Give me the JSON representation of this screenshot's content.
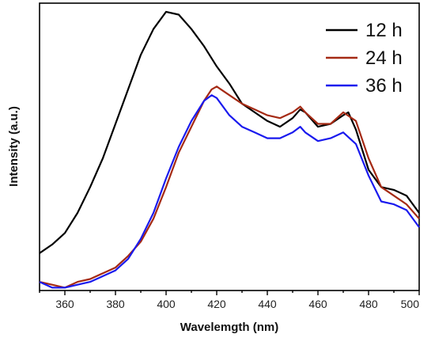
{
  "chart_data": {
    "type": "line",
    "xlabel": "Wavelemgth (nm)",
    "ylabel": "Intensity (a.u.)",
    "xlim": [
      350,
      500
    ],
    "ylim": [
      0,
      100
    ],
    "x_ticks": [
      360,
      380,
      400,
      420,
      440,
      460,
      480,
      500
    ],
    "y_ticks_shown": false,
    "grid": false,
    "legend_position": "top-right",
    "series": [
      {
        "name": "12 h",
        "color": "#000000",
        "x": [
          350,
          355,
          360,
          365,
          370,
          375,
          380,
          385,
          390,
          395,
          400,
          405,
          410,
          415,
          420,
          425,
          430,
          435,
          440,
          445,
          450,
          453,
          455,
          460,
          465,
          470,
          472,
          475,
          480,
          485,
          490,
          495,
          500
        ],
        "y": [
          13,
          16,
          20,
          27,
          36,
          46,
          58,
          70,
          82,
          91,
          97,
          96,
          91,
          85,
          78,
          72,
          65,
          62,
          59,
          57,
          60,
          63,
          62,
          57,
          58,
          61,
          62,
          56,
          42,
          36,
          35,
          33,
          27
        ]
      },
      {
        "name": "24 h",
        "color": "#a52a14",
        "x": [
          350,
          355,
          360,
          365,
          370,
          375,
          380,
          385,
          390,
          395,
          400,
          405,
          410,
          415,
          418,
          420,
          425,
          430,
          435,
          440,
          445,
          450,
          453,
          455,
          460,
          465,
          470,
          475,
          480,
          485,
          490,
          495,
          500
        ],
        "y": [
          3,
          2,
          1,
          3,
          4,
          6,
          8,
          12,
          17,
          25,
          36,
          48,
          57,
          66,
          70,
          71,
          68,
          65,
          63,
          61,
          60,
          62,
          64,
          62,
          58,
          58,
          62,
          59,
          46,
          36,
          33,
          30,
          25
        ]
      },
      {
        "name": "36 h",
        "color": "#1a1aee",
        "x": [
          350,
          355,
          360,
          365,
          370,
          375,
          380,
          385,
          390,
          395,
          400,
          405,
          410,
          415,
          418,
          420,
          425,
          430,
          435,
          440,
          445,
          450,
          453,
          455,
          460,
          465,
          470,
          475,
          480,
          485,
          490,
          495,
          500
        ],
        "y": [
          3,
          1,
          1,
          2,
          3,
          5,
          7,
          11,
          18,
          27,
          39,
          50,
          59,
          66,
          68,
          67,
          61,
          57,
          55,
          53,
          53,
          55,
          57,
          55,
          52,
          53,
          55,
          51,
          40,
          31,
          30,
          28,
          22
        ]
      }
    ]
  }
}
